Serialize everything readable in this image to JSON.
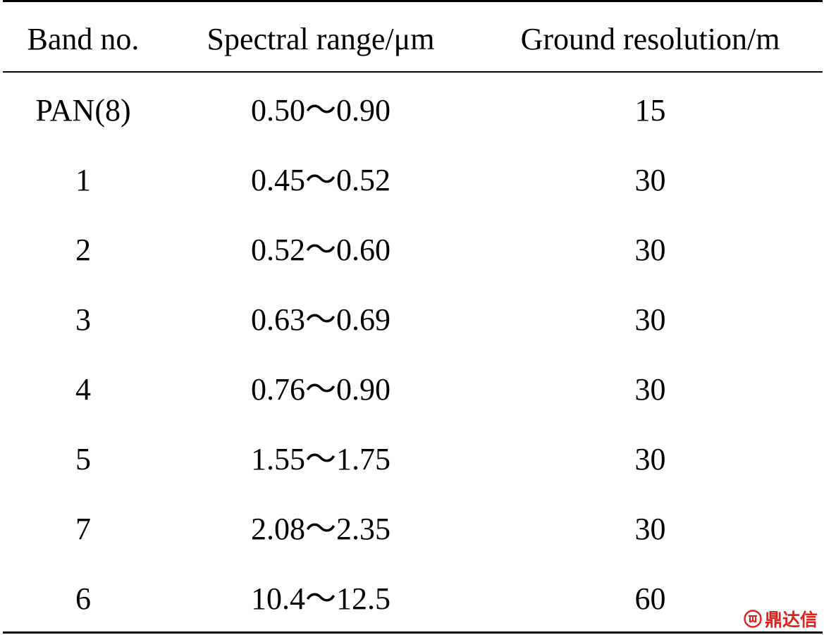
{
  "table": {
    "headers": [
      "Band no.",
      "Spectral range/μm",
      "Ground resolution/m"
    ],
    "rows": [
      [
        "PAN(8)",
        "0.50～0.90",
        "15"
      ],
      [
        "1",
        "0.45～0.52",
        "30"
      ],
      [
        "2",
        "0.52～0.60",
        "30"
      ],
      [
        "3",
        "0.63～0.69",
        "30"
      ],
      [
        "4",
        "0.76～0.90",
        "30"
      ],
      [
        "5",
        "1.55～1.75",
        "30"
      ],
      [
        "7",
        "2.08～2.35",
        "30"
      ],
      [
        "6",
        "10.4～12.5",
        "60"
      ]
    ]
  },
  "watermark": {
    "text": "鼎达信",
    "color": "#e0231a",
    "logo_icon": "seal-logo-icon"
  }
}
